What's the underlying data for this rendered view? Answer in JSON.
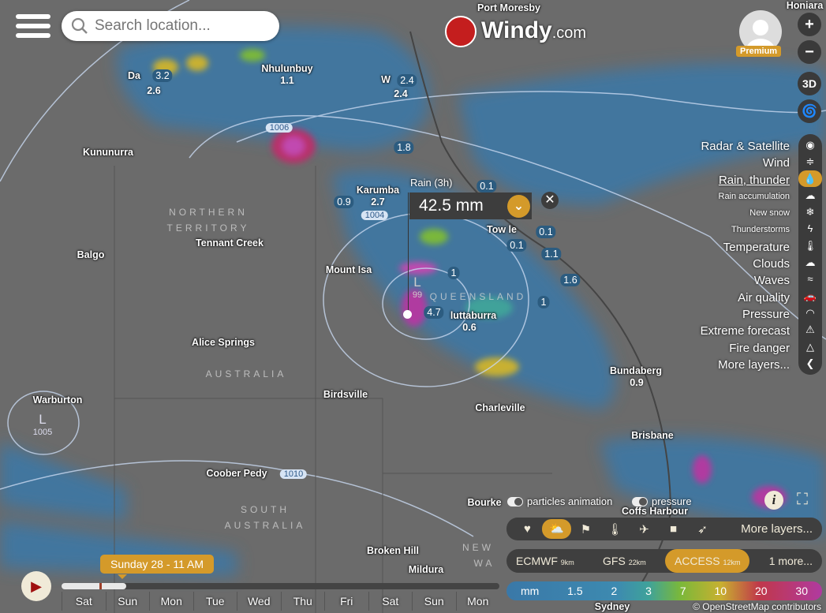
{
  "header": {
    "search_placeholder": "Search location...",
    "logo_text": "Windy",
    "logo_suffix": ".com",
    "premium_badge": "Premium"
  },
  "map_controls": {
    "zoom_in": "+",
    "zoom_out": "−",
    "three_d": "3D"
  },
  "layers_menu": {
    "items": [
      {
        "label": "Radar & Satellite",
        "icon": "globe-icon"
      },
      {
        "label": "Wind",
        "icon": "wind-icon"
      },
      {
        "label": "Rain, thunder",
        "icon": "raindrop-icon",
        "active": true
      },
      {
        "label": "Rain accumulation",
        "icon": "rain-cloud-icon"
      },
      {
        "label": "New snow",
        "icon": "snowflake-icon"
      },
      {
        "label": "Thunderstorms",
        "icon": "thunder-icon"
      },
      {
        "label": "Temperature",
        "icon": "thermometer-icon"
      },
      {
        "label": "Clouds",
        "icon": "cloud-icon"
      },
      {
        "label": "Waves",
        "icon": "waves-icon"
      },
      {
        "label": "Air quality",
        "icon": "car-icon"
      },
      {
        "label": "Pressure",
        "icon": "gauge-icon"
      },
      {
        "label": "Extreme forecast",
        "icon": "warning-icon"
      },
      {
        "label": "Fire danger",
        "icon": "fire-warning-icon"
      },
      {
        "label": "More layers...",
        "icon": "chevron-left-icon"
      }
    ]
  },
  "popup": {
    "title": "Rain (3h)",
    "value": "42.5 mm"
  },
  "map": {
    "cities": [
      "Port Moresby",
      "Honiara",
      "Da",
      "Nhulunbuy",
      "W",
      "Kununurra",
      "Karumba",
      "Tennant Creek",
      "Balgo",
      "Mount Isa",
      "Tow     le",
      "luttaburra",
      "Alice Springs",
      "Birdsville",
      "Bundaberg",
      "Charleville",
      "Brisbane",
      "Warburton",
      "Coober Pedy",
      "Bourke",
      "Coffs Harbour",
      "Broken Hill",
      "Sydney",
      "Mildura"
    ],
    "regions": [
      "NORTHERN",
      "TERRITORY",
      "QUEENSLAND",
      "AUSTRALIA",
      "SOUTH",
      "AUSTRALIA",
      "NEW",
      "WA"
    ],
    "badges": [
      "3.2",
      "2.4",
      "1.8",
      "0.9",
      "0.1",
      "0.1",
      "0.1",
      "1.1",
      "1.6",
      "1",
      "1",
      "4.7"
    ],
    "values": [
      "2.6",
      "1.1",
      "2.4",
      "2.7",
      "0.6",
      "0.9"
    ],
    "isobars": [
      "1006",
      "1004",
      "1010"
    ],
    "lows": [
      {
        "symbol": "L",
        "value": "1005"
      },
      {
        "symbol": "L",
        "value": "99"
      }
    ]
  },
  "toggles": {
    "particles": "particles animation",
    "pressure": "pressure"
  },
  "overlays": {
    "icons": [
      "heart-icon",
      "sun-cloud-icon",
      "windsock-icon",
      "thermometer-icon",
      "plane-icon",
      "webcam-icon",
      "paraglider-icon"
    ],
    "more": "More layers..."
  },
  "models": [
    {
      "name": "ECMWF",
      "res": "9km"
    },
    {
      "name": "GFS",
      "res": "22km"
    },
    {
      "name": "ACCESS",
      "res": "12km",
      "active": true
    },
    {
      "name": "1 more...",
      "res": ""
    }
  ],
  "legend": {
    "unit": "mm",
    "steps": [
      "1.5",
      "2",
      "3",
      "7",
      "10",
      "20",
      "30"
    ]
  },
  "attribution": "© OpenStreetMap contributors",
  "timeline": {
    "current": "Sunday 28 - 11 AM",
    "progress": 0.147,
    "days": [
      "Sat",
      "Sun",
      "Mon",
      "Tue",
      "Wed",
      "Thu",
      "Fri",
      "Sat",
      "Sun",
      "Mon"
    ]
  },
  "colors": {
    "accent": "#d49a2a",
    "panel": "#3f3f3f",
    "land": "#6b6b6b",
    "rain_light": "#3a78a8"
  }
}
